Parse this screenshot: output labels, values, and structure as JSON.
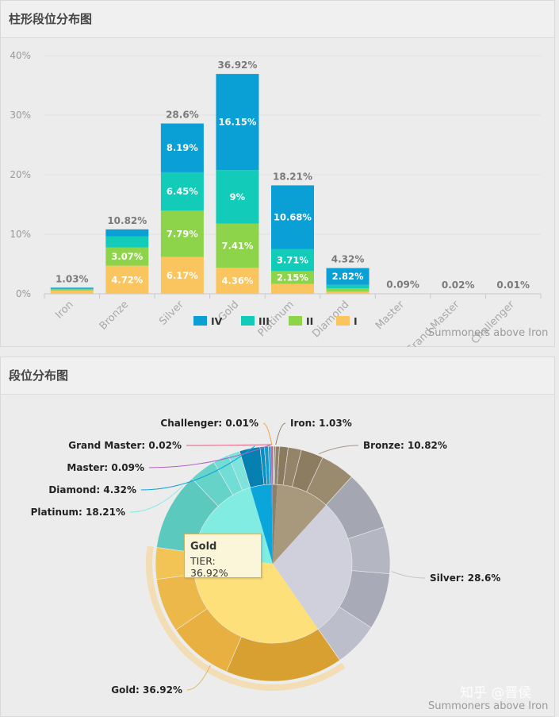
{
  "bar_panel": {
    "title": "柱形段位分布图",
    "watermark": "Summoners above Iron"
  },
  "pie_panel": {
    "title": "段位分布图",
    "watermark": "Summoners above Iron",
    "zhihu_mark": "知乎 @晋侯"
  },
  "tooltip": {
    "title": "Gold",
    "value": "TIER: 36.92%"
  },
  "chart_data": [
    {
      "type": "bar",
      "stacked": true,
      "title": "柱形段位分布图",
      "categories": [
        "Iron",
        "Bronze",
        "Silver",
        "Gold",
        "Platinum",
        "Diamond",
        "Master",
        "Grand Master",
        "Challenger"
      ],
      "yticks": [
        "0%",
        "10%",
        "20%",
        "30%",
        "40%"
      ],
      "ylim": [
        0,
        40
      ],
      "totals": [
        1.03,
        10.82,
        28.6,
        36.92,
        18.21,
        4.32,
        0.09,
        0.02,
        0.01
      ],
      "total_labels": [
        "1.03%",
        "10.82%",
        "28.6%",
        "36.92%",
        "18.21%",
        "4.32%",
        "0.09%",
        "0.02%",
        "0.01%"
      ],
      "series": [
        {
          "name": "I",
          "color": "#fac55e",
          "values": [
            0.55,
            4.72,
            6.17,
            4.36,
            1.67,
            0.35,
            0,
            0,
            0
          ],
          "labels": [
            "",
            "4.72%",
            "6.17%",
            "4.36%",
            "",
            "",
            "",
            "",
            ""
          ]
        },
        {
          "name": "II",
          "color": "#8ed44b",
          "values": [
            0.2,
            3.07,
            7.79,
            7.41,
            2.15,
            0.55,
            0,
            0,
            0
          ],
          "labels": [
            "",
            "3.07%",
            "7.79%",
            "7.41%",
            "2.15%",
            "",
            "",
            "",
            ""
          ]
        },
        {
          "name": "III",
          "color": "#12cbb8",
          "values": [
            0.1,
            1.83,
            6.45,
            9,
            3.71,
            0.6,
            0,
            0,
            0
          ],
          "labels": [
            "",
            "",
            "6.45%",
            "9%",
            "3.71%",
            "",
            "",
            "",
            ""
          ]
        },
        {
          "name": "IV",
          "color": "#0a9fd5",
          "values": [
            0.18,
            1.2,
            8.19,
            16.15,
            10.68,
            2.82,
            0,
            0,
            0
          ],
          "labels": [
            "",
            "",
            "8.19%",
            "16.15%",
            "10.68%",
            "2.82%",
            "",
            "",
            ""
          ]
        }
      ],
      "legend": {
        "placement": "bottom-center",
        "order": [
          "IV",
          "III",
          "II",
          "I"
        ]
      }
    },
    {
      "type": "pie",
      "style": "sunburst",
      "title": "段位分布图",
      "slices": [
        {
          "name": "Iron",
          "value": 1.03,
          "label": "Iron: 1.03%",
          "color": "#8c806a",
          "label_side": "right"
        },
        {
          "name": "Bronze",
          "value": 10.82,
          "label": "Bronze: 10.82%",
          "color": "#a8987c",
          "label_side": "right"
        },
        {
          "name": "Silver",
          "value": 28.6,
          "label": "Silver: 28.6%",
          "color": "#cfd0db",
          "label_side": "right"
        },
        {
          "name": "Gold",
          "value": 36.92,
          "label": "Gold: 36.92%",
          "color": "#fde07a",
          "label_side": "left",
          "highlighted": true
        },
        {
          "name": "Platinum",
          "value": 18.21,
          "label": "Platinum: 18.21%",
          "color": "#80ece2",
          "label_side": "left"
        },
        {
          "name": "Diamond",
          "value": 4.32,
          "label": "Diamond: 4.32%",
          "color": "#0aa5db",
          "label_side": "left"
        },
        {
          "name": "Master",
          "value": 0.09,
          "label": "Master: 0.09%",
          "color": "#b060c8",
          "label_side": "left"
        },
        {
          "name": "Grand Master",
          "value": 0.02,
          "label": "Grand Master: 0.02%",
          "color": "#e06080",
          "label_side": "left"
        },
        {
          "name": "Challenger",
          "value": 0.01,
          "label": "Challenger: 0.01%",
          "color": "#f0a040",
          "label_side": "left"
        }
      ],
      "outer_ring": [
        {
          "parent": "Iron",
          "values": [
            0.18,
            0.1,
            0.2,
            0.55
          ],
          "colors": [
            "#6e6350",
            "#7a6e58",
            "#847862",
            "#8e826c"
          ]
        },
        {
          "parent": "Bronze",
          "values": [
            1.2,
            1.83,
            3.07,
            4.72
          ],
          "colors": [
            "#8a7a5e",
            "#94846a",
            "#8c7c60",
            "#9a8a6e"
          ]
        },
        {
          "parent": "Silver",
          "values": [
            8.19,
            6.45,
            7.79,
            6.17
          ],
          "colors": [
            "#a4a6b2",
            "#b4b6c2",
            "#a8aab8",
            "#bcbecb"
          ]
        },
        {
          "parent": "Gold",
          "values": [
            16.15,
            9,
            7.41,
            4.36
          ],
          "colors": [
            "#d8a030",
            "#e7b040",
            "#edb84a",
            "#f2c455"
          ]
        },
        {
          "parent": "Platinum",
          "values": [
            10.68,
            3.71,
            2.15,
            1.67
          ],
          "colors": [
            "#5cc9bf",
            "#66d3c9",
            "#72ddd4",
            "#7ee3da"
          ]
        },
        {
          "parent": "Diamond",
          "values": [
            2.82,
            0.6,
            0.55,
            0.35
          ],
          "colors": [
            "#0580b0",
            "#0a8ec0",
            "#1599c9",
            "#20a4d2"
          ]
        }
      ]
    }
  ]
}
